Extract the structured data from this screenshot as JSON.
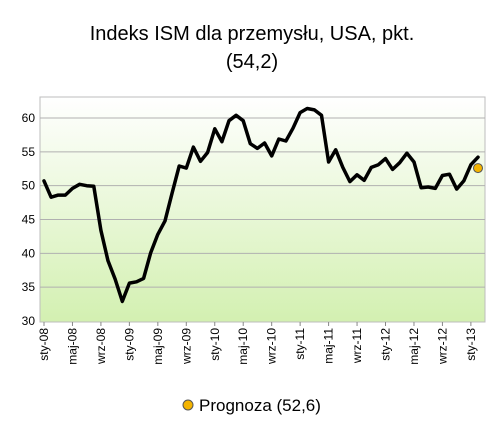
{
  "chart_data": {
    "type": "line",
    "title": "Indeks ISM dla przemysłu, USA, pkt.",
    "subtitle": "(54,2)",
    "xlabel": "",
    "ylabel": "",
    "ylim": [
      30,
      62
    ],
    "yticks": [
      "30",
      "35",
      "40",
      "45",
      "50",
      "55",
      "60"
    ],
    "xticks": [
      "sty-08",
      "maj-08",
      "wrz-08",
      "sty-09",
      "maj-09",
      "wrz-09",
      "sty-10",
      "maj-10",
      "wrz-10",
      "sty-11",
      "maj-11",
      "wrz-11",
      "sty-12",
      "maj-12",
      "wrz-12",
      "sty-13"
    ],
    "grid": true,
    "series": [
      {
        "values": [
          50.7,
          48.3,
          48.6,
          48.6,
          49.6,
          50.2,
          50.0,
          49.9,
          43.4,
          38.9,
          36.2,
          32.9,
          35.6,
          35.8,
          36.3,
          40.1,
          42.8,
          44.8,
          48.9,
          52.9,
          52.6,
          55.7,
          53.6,
          54.9,
          58.4,
          56.5,
          59.6,
          60.4,
          59.6,
          56.2,
          55.5,
          56.3,
          54.4,
          56.9,
          56.6,
          58.5,
          60.8,
          61.4,
          61.2,
          60.4,
          53.5,
          55.3,
          52.7,
          50.6,
          51.6,
          50.8,
          52.7,
          53.1,
          54.0,
          52.4,
          53.4,
          54.8,
          53.5,
          49.7,
          49.8,
          49.6,
          51.5,
          51.7,
          49.5,
          50.7,
          53.1,
          54.2
        ]
      }
    ],
    "forecast": {
      "index": 61,
      "value": 52.6
    },
    "legend": {
      "label": "Prognoza (52,6)",
      "position": "bottom"
    },
    "colors": {
      "line": "#000000",
      "marker_fill": "#f4b400",
      "marker_stroke": "#555555",
      "plot_bg_top": "#ffffff",
      "plot_bg_bottom": "#d3f0b1",
      "grid": "#b0b0b0"
    }
  }
}
